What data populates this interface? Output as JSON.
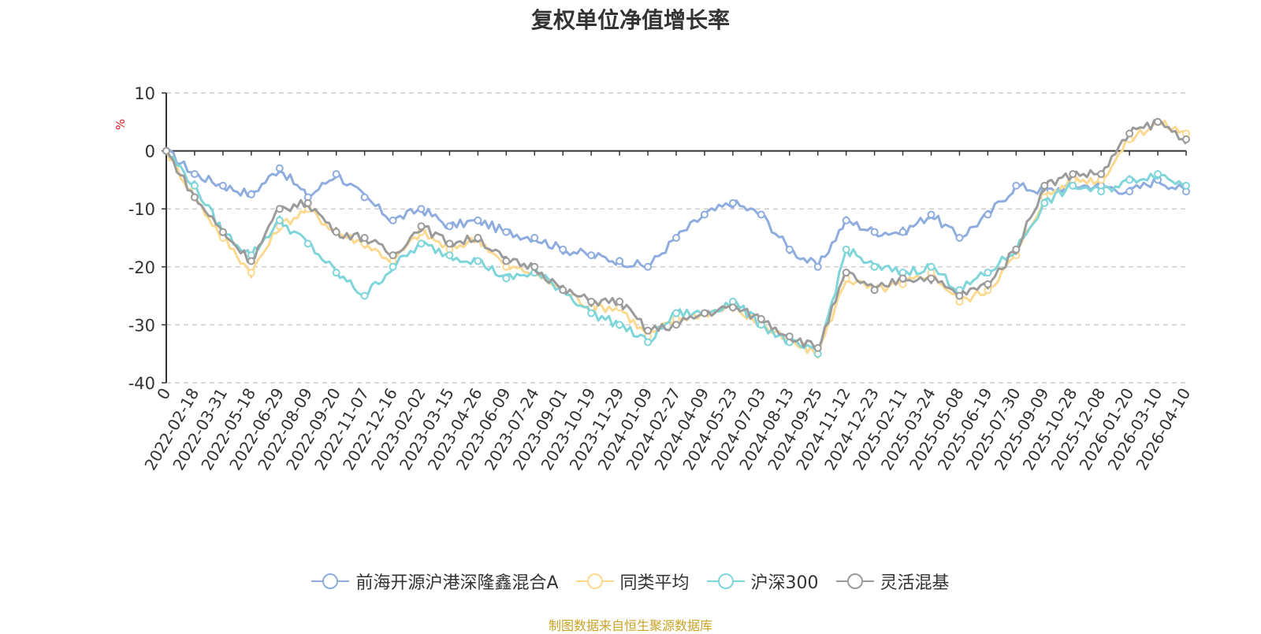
{
  "chart_data": {
    "type": "line",
    "title": "复权单位净值增长率",
    "ylabel": "%",
    "xlabel": "",
    "ylim": [
      -40,
      10
    ],
    "yticks": [
      "10",
      "0",
      "-10",
      "-20",
      "-30",
      "-40"
    ],
    "ytick_values": [
      10,
      0,
      -10,
      -20,
      -30,
      -40
    ],
    "grid": "horizontal dashed",
    "legend_position": "bottom-center",
    "x_tick_labels": [
      "0",
      "2022-02-18",
      "2022-03-31",
      "2022-05-18",
      "2022-06-29",
      "2022-08-09",
      "2022-09-20",
      "2022-11-07",
      "2022-12-16",
      "2023-02-02",
      "2023-03-15",
      "2023-04-26",
      "2023-06-09",
      "2023-07-24",
      "2023-09-01",
      "2023-10-19",
      "2023-11-29",
      "2024-01-09",
      "2024-02-27",
      "2024-04-09",
      "2024-05-23",
      "2024-07-03",
      "2024-08-13",
      "2024-09-25",
      "2024-11-12",
      "2024-12-23",
      "2025-02-11",
      "2025-03-24",
      "2025-05-08",
      "2025-06-19",
      "2025-07-30",
      "2025-09-09",
      "2025-10-28",
      "2025-12-08",
      "2026-01-20",
      "2026-03-10",
      "2026-04-10"
    ],
    "series": [
      {
        "name": "前海开源沪港深隆鑫混合A",
        "color": "#8eadde",
        "values": [
          0,
          -4,
          -6,
          -7.5,
          -3,
          -8,
          -4,
          -8,
          -12,
          -10,
          -13,
          -12,
          -14,
          -15,
          -17,
          -18,
          -19,
          -20,
          -15,
          -11,
          -9,
          -11,
          -17,
          -20,
          -12,
          -14,
          -14,
          -11,
          -15,
          -11,
          -6,
          -7,
          -6,
          -6,
          -7,
          -5,
          -7
        ]
      },
      {
        "name": "同类平均",
        "color": "#fcd98f",
        "values": [
          0,
          -8,
          -15,
          -21,
          -13,
          -10,
          -14,
          -16,
          -19,
          -14,
          -17,
          -15,
          -20,
          -21,
          -24,
          -27,
          -27,
          -32,
          -29,
          -28,
          -27,
          -30,
          -33,
          -35,
          -22,
          -24,
          -23,
          -21,
          -26,
          -24,
          -18,
          -8,
          -5,
          -5,
          2,
          5,
          3
        ]
      },
      {
        "name": "沪深300",
        "color": "#7fd5d9",
        "values": [
          0,
          -6,
          -14,
          -18,
          -12,
          -16,
          -21,
          -25,
          -20,
          -16,
          -18,
          -19,
          -22,
          -21,
          -24,
          -28,
          -30,
          -33,
          -28,
          -28,
          -26,
          -30,
          -33,
          -35,
          -17,
          -20,
          -21,
          -20,
          -24,
          -21,
          -17,
          -9,
          -6,
          -7,
          -5,
          -4,
          -6
        ]
      },
      {
        "name": "灵活混基",
        "color": "#9b9b9b",
        "values": [
          0,
          -8,
          -14,
          -19,
          -10,
          -9,
          -14,
          -15,
          -18,
          -13,
          -16,
          -15,
          -19,
          -20,
          -24,
          -26,
          -26,
          -31,
          -30,
          -28,
          -27,
          -29,
          -32,
          -34,
          -21,
          -24,
          -22,
          -22,
          -25,
          -23,
          -17,
          -6,
          -4,
          -4,
          3,
          5,
          2
        ]
      }
    ]
  },
  "footer": {
    "source": "制图数据来自恒生聚源数据库"
  }
}
